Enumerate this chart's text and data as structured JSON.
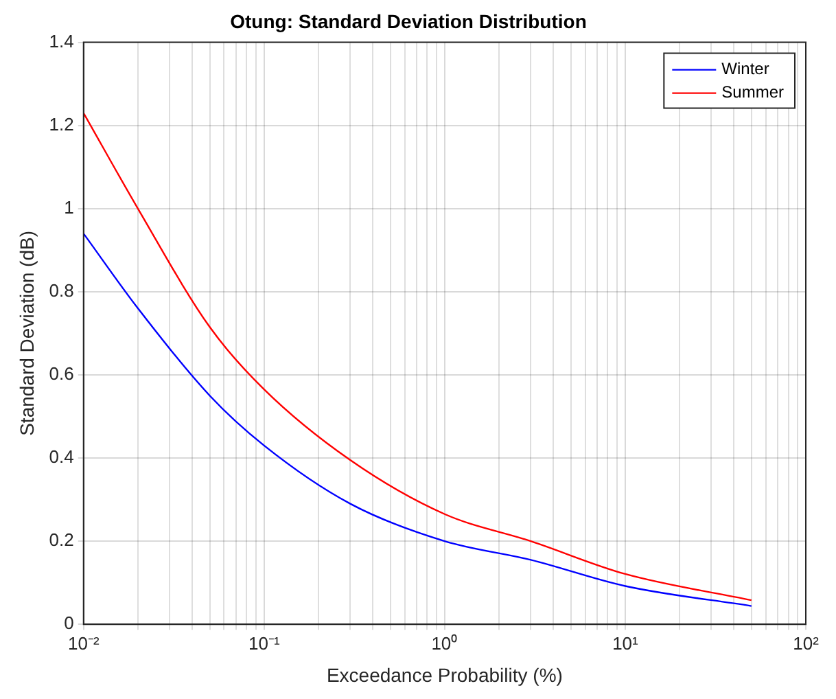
{
  "chart_data": {
    "type": "line",
    "title": "Otung: Standard Deviation Distribution",
    "xlabel": "Exceedance Probability (%)",
    "ylabel": "Standard Deviation (dB)",
    "log": "x",
    "grid": true,
    "legend": "top right",
    "marker": "none",
    "line_style": "solid",
    "xlim": [
      0.01,
      100
    ],
    "ylim": [
      0,
      1.4
    ],
    "xticks": [
      {
        "value": 0.01,
        "label": "10⁻²"
      },
      {
        "value": 0.02,
        "label": null
      },
      {
        "value": 0.03,
        "label": null
      },
      {
        "value": 0.04,
        "label": null
      },
      {
        "value": 0.05,
        "label": null
      },
      {
        "value": 0.06,
        "label": null
      },
      {
        "value": 0.07,
        "label": null
      },
      {
        "value": 0.08,
        "label": null
      },
      {
        "value": 0.09,
        "label": null
      },
      {
        "value": 0.1,
        "label": "10⁻¹"
      },
      {
        "value": 0.2,
        "label": null
      },
      {
        "value": 0.3,
        "label": null
      },
      {
        "value": 0.4,
        "label": null
      },
      {
        "value": 0.5,
        "label": null
      },
      {
        "value": 0.6,
        "label": null
      },
      {
        "value": 0.7,
        "label": null
      },
      {
        "value": 0.8,
        "label": null
      },
      {
        "value": 0.9,
        "label": null
      },
      {
        "value": 1,
        "label": "10⁰"
      },
      {
        "value": 2,
        "label": null
      },
      {
        "value": 3,
        "label": null
      },
      {
        "value": 4,
        "label": null
      },
      {
        "value": 5,
        "label": null
      },
      {
        "value": 6,
        "label": null
      },
      {
        "value": 7,
        "label": null
      },
      {
        "value": 8,
        "label": null
      },
      {
        "value": 9,
        "label": null
      },
      {
        "value": 10,
        "label": "10¹"
      },
      {
        "value": 20,
        "label": null
      },
      {
        "value": 30,
        "label": null
      },
      {
        "value": 40,
        "label": null
      },
      {
        "value": 50,
        "label": null
      },
      {
        "value": 60,
        "label": null
      },
      {
        "value": 70,
        "label": null
      },
      {
        "value": 80,
        "label": null
      },
      {
        "value": 90,
        "label": null
      },
      {
        "value": 100,
        "label": "10²"
      }
    ],
    "yticks": [
      0,
      0.2,
      0.4,
      0.6,
      0.8,
      1,
      1.2,
      1.4
    ],
    "x": [
      0.01,
      0.02,
      0.05,
      0.1,
      0.3,
      1,
      3,
      10,
      50
    ],
    "series": [
      {
        "name": "Winter",
        "color": "#0000ff",
        "values": [
          0.94,
          0.76,
          0.55,
          0.43,
          0.29,
          0.2,
          0.155,
          0.092,
          0.044
        ]
      },
      {
        "name": "Summer",
        "color": "#ff0000",
        "values": [
          1.23,
          1.0,
          0.715,
          0.565,
          0.395,
          0.265,
          0.2,
          0.121,
          0.058
        ]
      }
    ]
  }
}
